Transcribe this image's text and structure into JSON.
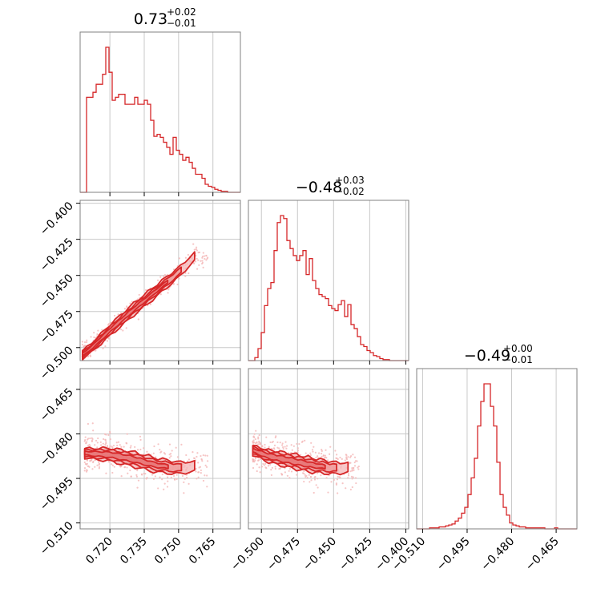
{
  "colors": {
    "series": "#d62728",
    "series_light": "#f4b6b7",
    "grid": "#c8c8c8",
    "frame": "#808080"
  },
  "chart_data": {
    "type": "corner",
    "parameters": [
      {
        "range": [
          0.707,
          0.777
        ],
        "title": {
          "median": "0.73",
          "plus": "+0.02",
          "minus": "−0.01"
        },
        "ticks": [
          0.72,
          0.735,
          0.75,
          0.765
        ],
        "tick_labels": [
          "0.720",
          "0.735",
          "0.750",
          "0.765"
        ]
      },
      {
        "range": [
          -0.509,
          -0.398
        ],
        "title": {
          "median": "−0.48",
          "plus": "+0.03",
          "minus": "−0.02"
        },
        "ticks": [
          -0.5,
          -0.475,
          -0.45,
          -0.425,
          -0.4
        ],
        "tick_labels": [
          "−0.500",
          "−0.475",
          "−0.450",
          "−0.425",
          "−0.400"
        ]
      },
      {
        "range": [
          -0.512,
          -0.458
        ],
        "title": {
          "median": "−0.49",
          "plus": "+0.00",
          "minus": "−0.01"
        },
        "ticks": [
          -0.51,
          -0.495,
          -0.48,
          -0.465
        ],
        "tick_labels": [
          "−0.510",
          "−0.495",
          "−0.480",
          "−0.465"
        ]
      }
    ],
    "histograms": [
      {
        "param": 0,
        "counts": [
          0,
          0,
          95,
          95,
          100,
          108,
          108,
          118,
          145,
          120,
          92,
          95,
          98,
          98,
          88,
          88,
          88,
          95,
          88,
          88,
          92,
          88,
          72,
          56,
          58,
          55,
          50,
          45,
          38,
          55,
          42,
          38,
          32,
          35,
          30,
          24,
          18,
          18,
          14,
          8,
          6,
          5,
          3,
          2,
          1,
          1,
          0,
          0,
          0,
          0
        ]
      },
      {
        "param": 1,
        "counts": [
          0,
          0,
          3,
          12,
          28,
          55,
          72,
          78,
          110,
          138,
          145,
          142,
          120,
          112,
          105,
          100,
          105,
          110,
          86,
          102,
          80,
          72,
          66,
          64,
          62,
          55,
          52,
          50,
          56,
          60,
          44,
          56,
          36,
          32,
          24,
          16,
          14,
          10,
          8,
          5,
          4,
          2,
          1,
          1,
          0,
          0,
          0,
          0,
          0,
          0
        ]
      },
      {
        "param": 2,
        "counts": [
          0,
          0,
          0,
          0,
          1,
          1,
          1,
          2,
          2,
          3,
          4,
          5,
          8,
          11,
          16,
          22,
          35,
          52,
          72,
          105,
          130,
          148,
          148,
          125,
          105,
          68,
          35,
          22,
          14,
          6,
          4,
          3,
          2,
          2,
          1,
          1,
          1,
          1,
          1,
          1,
          0,
          0,
          0,
          1,
          0,
          0,
          0,
          0,
          0,
          0
        ]
      }
    ],
    "pairs": [
      {
        "x_param": 0,
        "y_param": 1,
        "correlation": "strong positive",
        "ridge": [
          [
            0.708,
            -0.505
          ],
          [
            0.712,
            -0.5
          ],
          [
            0.72,
            -0.488
          ],
          [
            0.73,
            -0.474
          ],
          [
            0.74,
            -0.461
          ],
          [
            0.75,
            -0.448
          ],
          [
            0.757,
            -0.437
          ]
        ]
      },
      {
        "x_param": 0,
        "y_param": 2,
        "correlation": "weak",
        "ridge": [
          [
            0.709,
            -0.4865
          ],
          [
            0.72,
            -0.487
          ],
          [
            0.73,
            -0.4885
          ],
          [
            0.74,
            -0.4905
          ],
          [
            0.75,
            -0.4915
          ],
          [
            0.757,
            -0.491
          ]
        ]
      },
      {
        "x_param": 1,
        "y_param": 2,
        "correlation": "weak",
        "ridge": [
          [
            -0.506,
            -0.4855
          ],
          [
            -0.495,
            -0.4875
          ],
          [
            -0.48,
            -0.489
          ],
          [
            -0.465,
            -0.4905
          ],
          [
            -0.45,
            -0.4915
          ],
          [
            -0.44,
            -0.4915
          ]
        ]
      }
    ],
    "grid": true
  }
}
